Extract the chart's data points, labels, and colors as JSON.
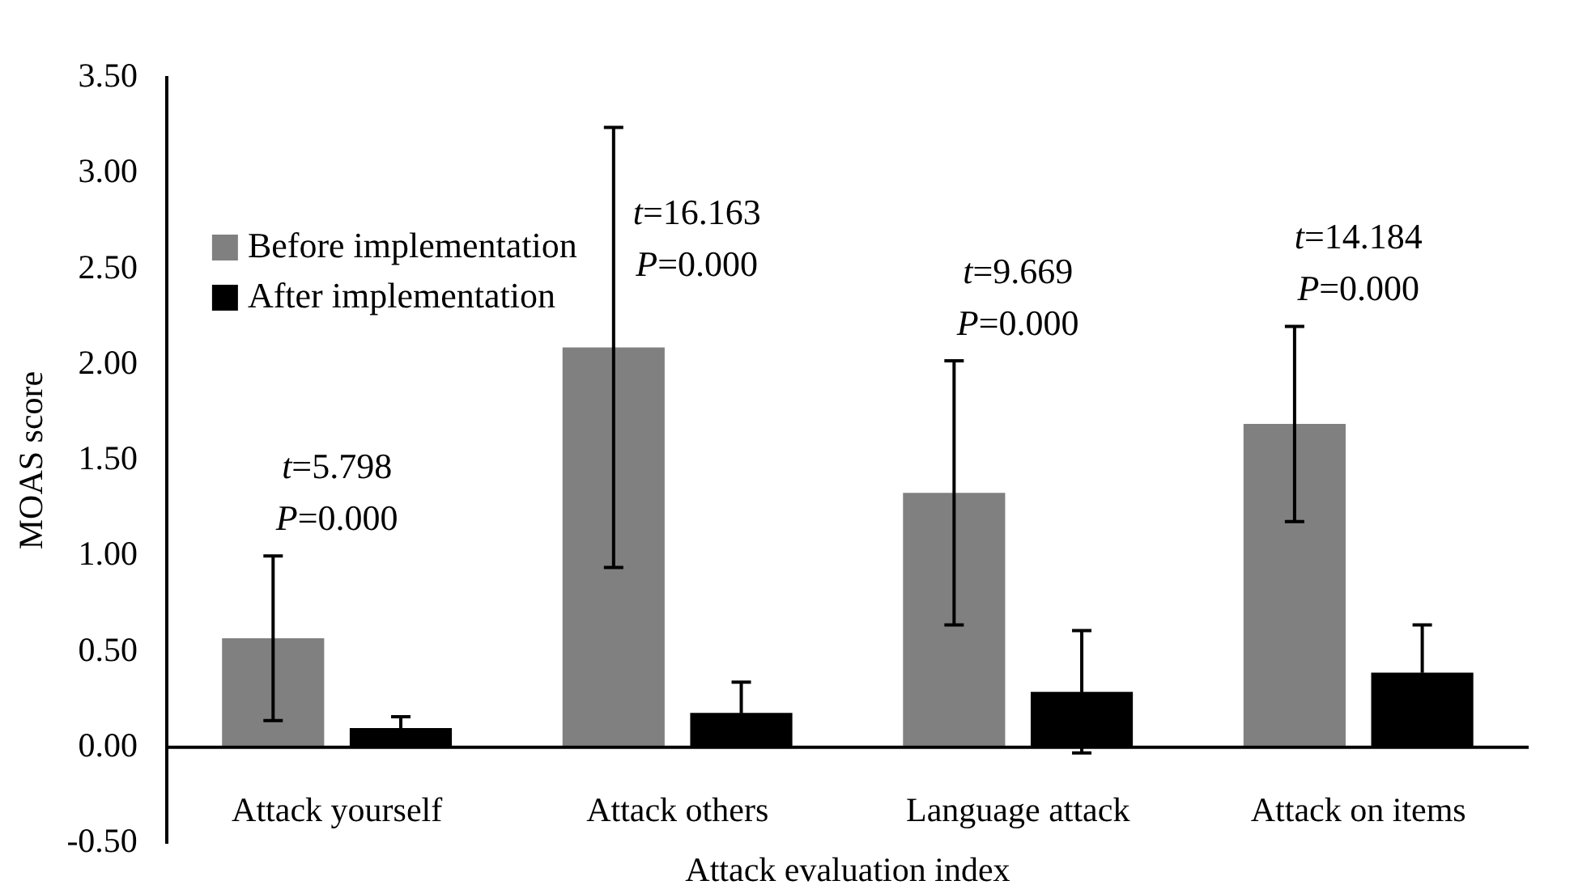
{
  "chart_data": {
    "type": "bar",
    "xlabel": "Attack evaluation index",
    "ylabel": "MOAS score",
    "categories": [
      "Attack yourself",
      "Attack others",
      "Language attack",
      "Attack on items"
    ],
    "series": [
      {
        "name": "Before implementation",
        "color": "#808080",
        "values": [
          0.57,
          2.09,
          1.33,
          1.69
        ],
        "errors": [
          0.43,
          1.15,
          0.69,
          0.51
        ]
      },
      {
        "name": "After implementation",
        "color": "#000000",
        "values": [
          0.1,
          0.18,
          0.29,
          0.39
        ],
        "errors": [
          0.06,
          0.16,
          0.32,
          0.25
        ]
      }
    ],
    "ylim": [
      -0.5,
      3.5
    ],
    "yticks": [
      {
        "value": -0.5,
        "label": "-0.50"
      },
      {
        "value": 0,
        "label": "0.00"
      },
      {
        "value": 0.5,
        "label": "0.50"
      },
      {
        "value": 1,
        "label": "1.00"
      },
      {
        "value": 1.5,
        "label": "1.50"
      },
      {
        "value": 2,
        "label": "2.00"
      },
      {
        "value": 2.5,
        "label": "2.50"
      },
      {
        "value": 3,
        "label": "3.00"
      },
      {
        "value": 3.5,
        "label": "3.50"
      }
    ],
    "grid": false,
    "legend": "top left",
    "annotations": [
      "t=5.798",
      "P=0.000",
      "t=16.163",
      "P=0.000",
      "t=9.669",
      "P=0.000",
      "t=14.184",
      "P=0.000"
    ]
  }
}
